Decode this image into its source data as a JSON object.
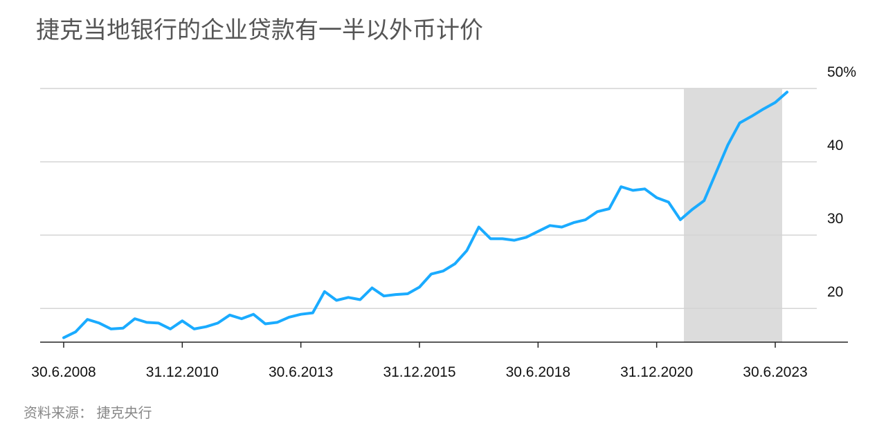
{
  "chart_data": {
    "type": "line",
    "title": "捷克当地银行的企业贷款有一半以外币计价",
    "source": "资料来源： 捷克央行",
    "categories": [
      "30.6.2008",
      null,
      null,
      null,
      null,
      null,
      null,
      null,
      null,
      null,
      "31.12.2010",
      null,
      null,
      null,
      null,
      null,
      null,
      null,
      null,
      null,
      "30.6.2013",
      null,
      null,
      null,
      null,
      null,
      null,
      null,
      null,
      null,
      "31.12.2015",
      null,
      null,
      null,
      null,
      null,
      null,
      null,
      null,
      null,
      "30.6.2018",
      null,
      null,
      null,
      null,
      null,
      null,
      null,
      null,
      null,
      "31.12.2020",
      null,
      null,
      null,
      null,
      null,
      null,
      null,
      null,
      null,
      "30.6.2023",
      null
    ],
    "series": [
      {
        "name": null,
        "color": "#1aabff",
        "values": [
          16.0,
          16.8,
          18.5,
          18.0,
          17.2,
          17.3,
          18.6,
          18.1,
          18.0,
          17.2,
          18.3,
          17.2,
          17.5,
          18.0,
          19.1,
          18.6,
          19.2,
          17.9,
          18.1,
          18.8,
          19.2,
          19.4,
          22.3,
          21.1,
          21.5,
          21.2,
          22.8,
          21.7,
          21.9,
          22.0,
          22.9,
          24.7,
          25.1,
          26.1,
          27.9,
          31.1,
          29.5,
          29.5,
          29.3,
          29.7,
          30.5,
          31.3,
          31.1,
          31.7,
          32.1,
          33.2,
          33.6,
          36.6,
          36.1,
          36.3,
          35.1,
          34.5,
          32.1,
          33.5,
          34.7,
          38.5,
          42.3,
          45.3,
          46.2,
          47.2,
          48.1,
          49.5
        ]
      }
    ],
    "ylim": [
      15.4,
      50
    ],
    "yticks": [
      20,
      30,
      40,
      {
        "value": 50,
        "label": "50%"
      }
    ],
    "grid": true
  }
}
